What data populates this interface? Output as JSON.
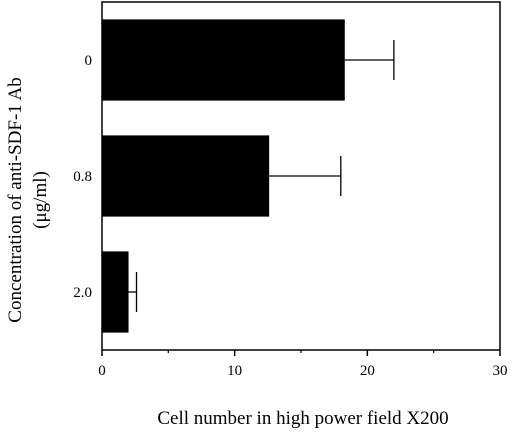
{
  "chart_data": {
    "type": "bar",
    "orientation": "horizontal",
    "categories": [
      "0",
      "0.8",
      "2.0"
    ],
    "values": [
      18.3,
      12.6,
      2.0
    ],
    "errors": [
      3.7,
      5.4,
      0.6
    ],
    "xlabel": "Cell number in high power field X200",
    "ylabel": "Concentration of anti-SDF-1 Ab",
    "ylabel_unit": "(μg/ml)",
    "xlim": [
      0,
      30
    ],
    "xticks": [
      "0",
      "10",
      "20",
      "30"
    ],
    "bar_color": "#000000",
    "grid": false,
    "legend": "none"
  }
}
